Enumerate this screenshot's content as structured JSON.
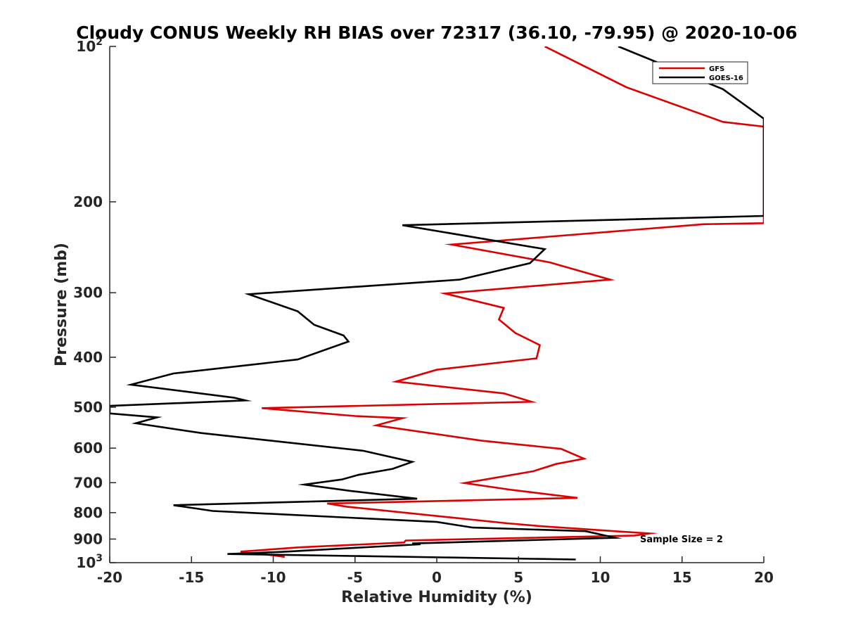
{
  "chart_data": {
    "type": "line",
    "title": "Cloudy CONUS Weekly RH BIAS over 72317 (36.10, -79.95) @ 2020-10-06",
    "xlabel": "Relative Humidity (%)",
    "ylabel": "Pressure (mb)",
    "xlim": [
      -20,
      20
    ],
    "ylim": [
      100,
      1000
    ],
    "y_scale": "log",
    "y_reversed": true,
    "x_ticks": [
      "-20",
      "-15",
      "-10",
      "-5",
      "0",
      "5",
      "10",
      "15",
      "20"
    ],
    "y_ticks": [
      {
        "value": 100,
        "label": "10",
        "sup": "2"
      },
      {
        "value": 200,
        "label": "200"
      },
      {
        "value": 300,
        "label": "300"
      },
      {
        "value": 400,
        "label": "400"
      },
      {
        "value": 500,
        "label": "500"
      },
      {
        "value": 600,
        "label": "600"
      },
      {
        "value": 700,
        "label": "700"
      },
      {
        "value": 800,
        "label": "800"
      },
      {
        "value": 900,
        "label": "900"
      },
      {
        "value": 1000,
        "label": "10",
        "sup": "3"
      }
    ],
    "legend_position": "top-right",
    "annotation": "Sample Size = 2",
    "series": [
      {
        "name": "GFS",
        "color": "#dd0000",
        "points": [
          [
            6.6,
            100
          ],
          [
            11.6,
            120
          ],
          [
            17.5,
            140
          ],
          [
            20.0,
            143
          ],
          [
            20.0,
            220
          ],
          [
            16.3,
            221
          ],
          [
            0.9,
            242
          ],
          [
            6.9,
            262
          ],
          [
            10.6,
            283
          ],
          [
            0.5,
            301
          ],
          [
            4.1,
            321
          ],
          [
            3.8,
            338
          ],
          [
            4.8,
            359
          ],
          [
            6.3,
            379
          ],
          [
            6.1,
            402
          ],
          [
            0.0,
            423
          ],
          [
            -2.5,
            446
          ],
          [
            4.1,
            470
          ],
          [
            5.8,
            488
          ],
          [
            -10.7,
            502
          ],
          [
            -5.0,
            520
          ],
          [
            -2.1,
            525
          ],
          [
            -3.7,
            542
          ],
          [
            2.7,
            580
          ],
          [
            7.6,
            602
          ],
          [
            9.0,
            629
          ],
          [
            7.3,
            644
          ],
          [
            5.9,
            665
          ],
          [
            1.7,
            701
          ],
          [
            4.6,
            723
          ],
          [
            8.6,
            749
          ],
          [
            -6.7,
            768
          ],
          [
            -5.5,
            779
          ],
          [
            4.3,
            839
          ],
          [
            6.4,
            850
          ],
          [
            13.0,
            878
          ],
          [
            12.1,
            886
          ],
          [
            -1.9,
            906
          ],
          [
            -2.0,
            914
          ],
          [
            -8.4,
            934
          ],
          [
            -12.0,
            952
          ],
          [
            -10.0,
            968
          ],
          [
            -9.3,
            975
          ]
        ]
      },
      {
        "name": "GOES-16",
        "color": "#000000",
        "points": [
          [
            11.1,
            100
          ],
          [
            17.5,
            121
          ],
          [
            20.0,
            138
          ],
          [
            20.0,
            213
          ],
          [
            -2.1,
            222
          ],
          [
            6.6,
            247
          ],
          [
            5.7,
            263
          ],
          [
            1.4,
            283
          ],
          [
            -11.5,
            302
          ],
          [
            -8.5,
            326
          ],
          [
            -7.5,
            346
          ],
          [
            -5.7,
            363
          ],
          [
            -5.4,
            373
          ],
          [
            -8.5,
            404
          ],
          [
            -16.1,
            430
          ],
          [
            -18.7,
            452
          ],
          [
            -12.4,
            479
          ],
          [
            -11.7,
            485
          ],
          [
            -20.0,
            497
          ],
          [
            -20.0,
            514
          ],
          [
            -17.1,
            523
          ],
          [
            -18.4,
            537
          ],
          [
            -14.4,
            561
          ],
          [
            -4.5,
            607
          ],
          [
            -1.5,
            638
          ],
          [
            -2.7,
            658
          ],
          [
            -4.8,
            676
          ],
          [
            -5.8,
            690
          ],
          [
            -8.1,
            706
          ],
          [
            -5.3,
            726
          ],
          [
            -1.2,
            752
          ],
          [
            -16.1,
            774
          ],
          [
            -13.7,
            794
          ],
          [
            0.0,
            834
          ],
          [
            2.2,
            855
          ],
          [
            9.1,
            869
          ],
          [
            10.9,
            895
          ],
          [
            -1.5,
            918
          ],
          [
            -1.0,
            921
          ],
          [
            -9.5,
            953
          ],
          [
            -12.8,
            962
          ],
          [
            8.5,
            986
          ]
        ]
      }
    ]
  }
}
